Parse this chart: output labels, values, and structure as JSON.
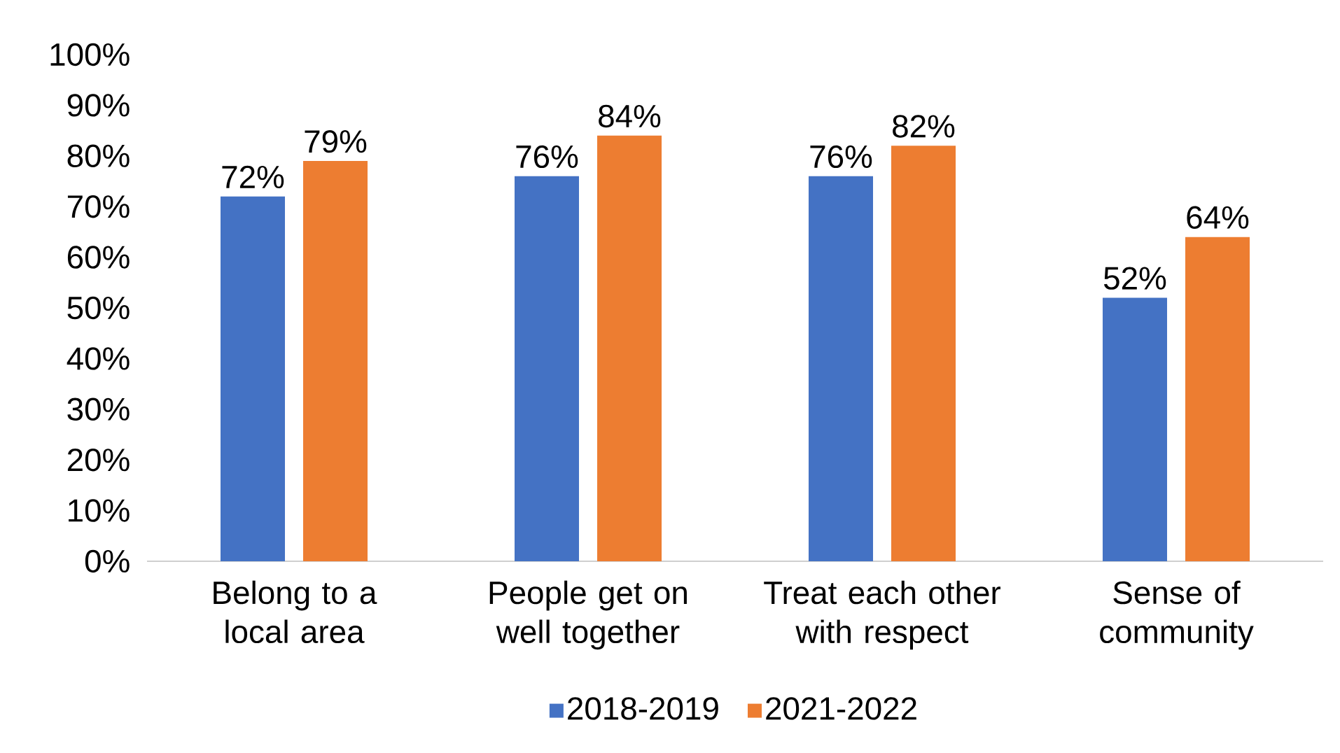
{
  "chart_data": {
    "type": "bar",
    "categories": [
      "Belong to a local area",
      "People get on well together",
      "Treat each other with respect",
      "Sense of community"
    ],
    "series": [
      {
        "name": "2018-2019",
        "color": "#4472c4",
        "values": [
          72,
          76,
          76,
          52
        ],
        "value_labels": [
          "72%",
          "76%",
          "76%",
          "52%"
        ]
      },
      {
        "name": "2021-2022",
        "color": "#ed7d31",
        "values": [
          79,
          84,
          82,
          64
        ],
        "value_labels": [
          "79%",
          "84%",
          "82%",
          "64%"
        ]
      }
    ],
    "ylim": [
      0,
      100
    ],
    "yticks": [
      {
        "value": 0,
        "label": "0%"
      },
      {
        "value": 10,
        "label": "10%"
      },
      {
        "value": 20,
        "label": "20%"
      },
      {
        "value": 30,
        "label": "30%"
      },
      {
        "value": 40,
        "label": "40%"
      },
      {
        "value": 50,
        "label": "50%"
      },
      {
        "value": 60,
        "label": "60%"
      },
      {
        "value": 70,
        "label": "70%"
      },
      {
        "value": 80,
        "label": "80%"
      },
      {
        "value": 90,
        "label": "90%"
      },
      {
        "value": 100,
        "label": "100%"
      }
    ],
    "grid": false,
    "legend": "bottom"
  }
}
